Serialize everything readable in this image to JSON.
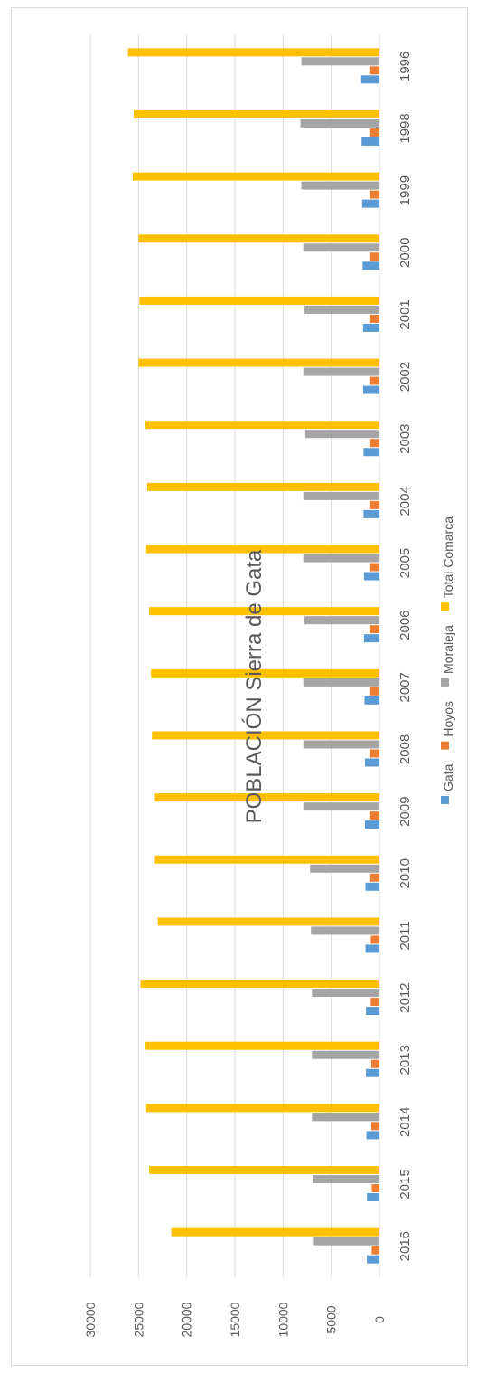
{
  "chart_data": {
    "type": "bar",
    "orientation": "horizontal",
    "title": "POBLACIÓN Sierra de Gata",
    "categories": [
      "1996",
      "1998",
      "1999",
      "2000",
      "2001",
      "2002",
      "2003",
      "2004",
      "2005",
      "2006",
      "2007",
      "2008",
      "2009",
      "2010",
      "2011",
      "2012",
      "2013",
      "2014",
      "2015",
      "2016"
    ],
    "series": [
      {
        "name": "Gata",
        "color": "#5b9bd5",
        "values": [
          1900,
          1850,
          1800,
          1750,
          1700,
          1700,
          1650,
          1650,
          1600,
          1600,
          1550,
          1500,
          1500,
          1450,
          1450,
          1400,
          1400,
          1350,
          1300,
          1300
        ]
      },
      {
        "name": "Hoyos",
        "color": "#ed7d31",
        "values": [
          950,
          950,
          950,
          950,
          950,
          950,
          950,
          950,
          950,
          950,
          950,
          950,
          950,
          950,
          900,
          900,
          850,
          850,
          800,
          800
        ]
      },
      {
        "name": "Moraleja",
        "color": "#a5a5a5",
        "values": [
          8100,
          8200,
          8100,
          7900,
          7800,
          7900,
          7700,
          7900,
          7900,
          7800,
          7900,
          7900,
          7900,
          7200,
          7100,
          7000,
          7000,
          7000,
          6900,
          6800
        ]
      },
      {
        "name": "Total Comarca",
        "color": "#ffc000",
        "values": [
          26100,
          25500,
          25600,
          25000,
          24900,
          25000,
          24300,
          24100,
          24200,
          23900,
          23700,
          23600,
          23300,
          23300,
          23000,
          24800,
          24300,
          24200,
          23900,
          21600
        ]
      }
    ],
    "value_axis": {
      "min": 0,
      "max": 30000,
      "ticks": [
        0,
        5000,
        10000,
        15000,
        20000,
        25000,
        30000
      ]
    },
    "grid": true,
    "legend_position": "bottom"
  }
}
